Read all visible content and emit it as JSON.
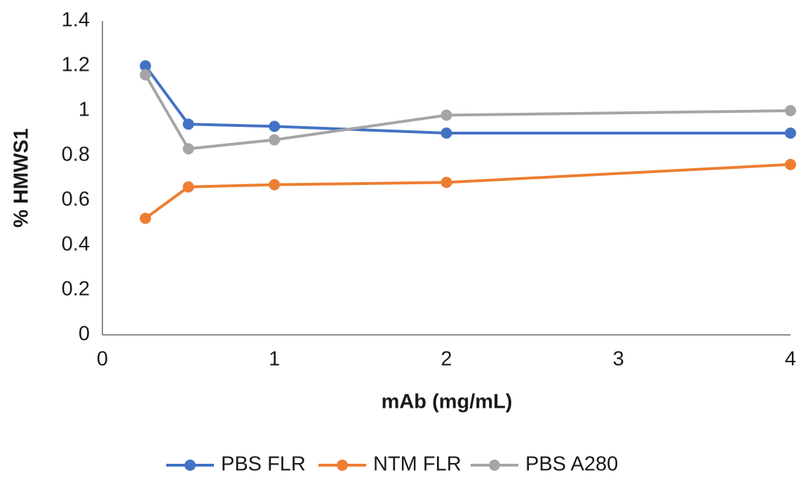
{
  "chart_data": {
    "type": "line",
    "x_label": "mAb (mg/mL)",
    "y_label": "% HMWS1",
    "x": [
      0.25,
      0.5,
      1,
      2,
      4
    ],
    "series": [
      {
        "name": "PBS FLR",
        "color": "#4472c4",
        "values": [
          1.2,
          0.94,
          0.93,
          0.9,
          0.9
        ]
      },
      {
        "name": "NTM FLR",
        "color": "#ed7d31",
        "values": [
          0.52,
          0.66,
          0.67,
          0.68,
          0.76
        ]
      },
      {
        "name": "PBS A280",
        "color": "#a5a5a5",
        "values": [
          1.16,
          0.83,
          0.87,
          0.98,
          1.0
        ]
      }
    ],
    "xlim": [
      0,
      4
    ],
    "xticks": [
      0,
      1,
      2,
      3,
      4
    ],
    "ylim": [
      0,
      1.4
    ],
    "yticks": [
      0,
      0.2,
      0.4,
      0.6,
      0.8,
      1,
      1.2,
      1.4
    ],
    "grid": false,
    "legend": "bottom"
  }
}
